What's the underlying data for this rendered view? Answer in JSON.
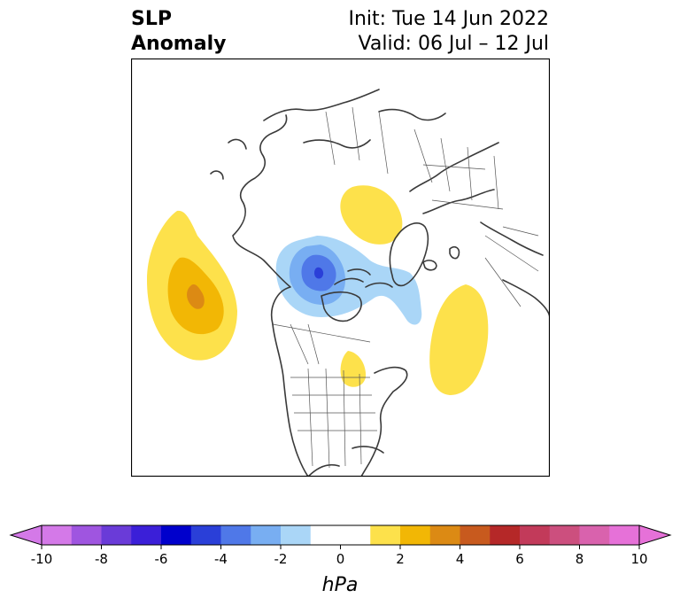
{
  "title": {
    "variable_line1": "SLP",
    "variable_line2": "Anomaly",
    "init_text": "Init: Tue 14 Jun 2022",
    "valid_text": "Valid: 06 Jul – 12 Jul"
  },
  "colorbar": {
    "unit": "hPa",
    "tick_labels": [
      "-10",
      "-8",
      "-6",
      "-4",
      "-2",
      "0",
      "2",
      "4",
      "6",
      "8",
      "10"
    ],
    "colors": [
      "#d479e8",
      "#9f55e0",
      "#6a3bd8",
      "#3b1fd8",
      "#0000cc",
      "#2a3fd8",
      "#4f78e8",
      "#78aef2",
      "#aad6f7",
      "#ffffff",
      "#ffffff",
      "#fde14b",
      "#f2b705",
      "#dc8a14",
      "#c85a1e",
      "#b52828",
      "#c23a5a",
      "#cc4f7e",
      "#d962ad",
      "#e671d8"
    ]
  },
  "map": {
    "projection": "north-polar-stereographic",
    "anomaly_features": [
      {
        "name": "north-pacific-high",
        "peak_hpa": 5,
        "sign": "positive"
      },
      {
        "name": "hudson-bay-low",
        "peak_hpa": -6,
        "sign": "negative"
      },
      {
        "name": "north-atlantic-high",
        "peak_hpa": 2,
        "sign": "positive"
      },
      {
        "name": "siberia-high",
        "peak_hpa": 2,
        "sign": "positive"
      },
      {
        "name": "great-lakes-high",
        "peak_hpa": 2,
        "sign": "positive"
      }
    ]
  }
}
